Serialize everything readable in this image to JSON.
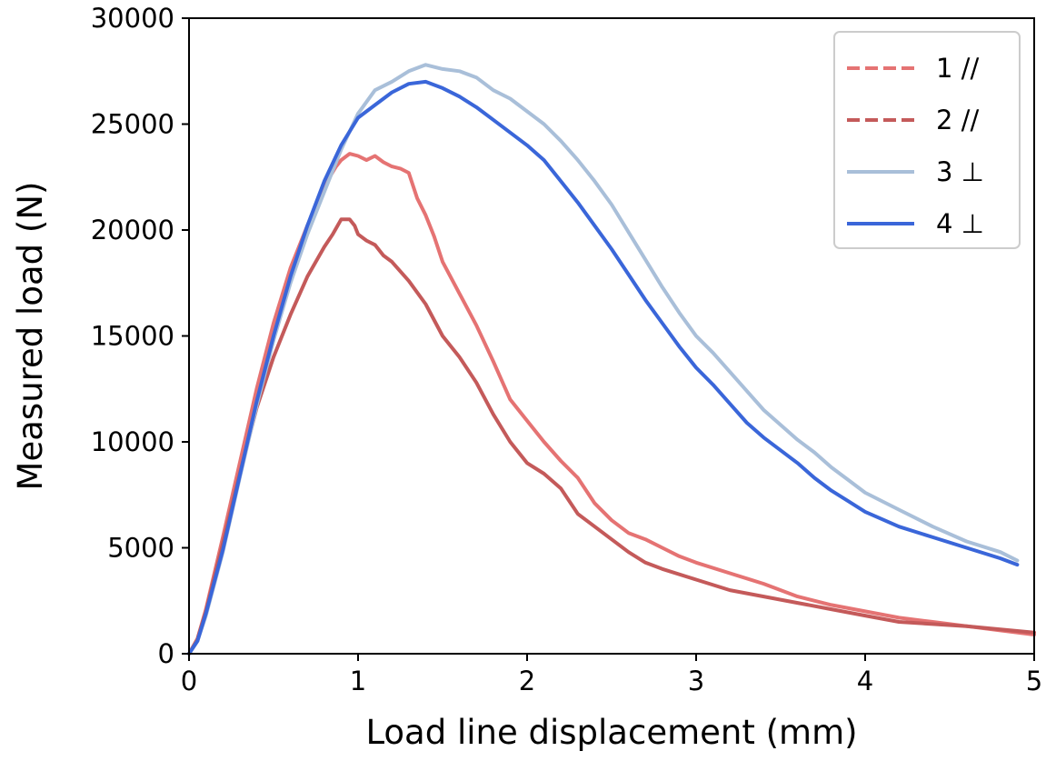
{
  "chart_data": {
    "type": "line",
    "title": "",
    "xlabel": "Load line displacement (mm)",
    "ylabel": "Measured load (N)",
    "xlim": [
      0,
      5
    ],
    "ylim": [
      0,
      30000
    ],
    "xticks": [
      0,
      1,
      2,
      3,
      4,
      5
    ],
    "xtick_labels": [
      "0",
      "1",
      "2",
      "3",
      "4",
      "5"
    ],
    "yticks": [
      0,
      5000,
      10000,
      15000,
      20000,
      25000,
      30000
    ],
    "ytick_labels": [
      "0",
      "5000",
      "10000",
      "15000",
      "20000",
      "25000",
      "30000"
    ],
    "grid": false,
    "legend_position": "top-right",
    "series": [
      {
        "name": "1 //",
        "color": "#e57373",
        "dash": "dashed",
        "points": [
          [
            0,
            0
          ],
          [
            0.05,
            700
          ],
          [
            0.1,
            2100
          ],
          [
            0.2,
            5500
          ],
          [
            0.3,
            9000
          ],
          [
            0.4,
            12500
          ],
          [
            0.5,
            15600
          ],
          [
            0.6,
            18200
          ],
          [
            0.7,
            20200
          ],
          [
            0.8,
            22000
          ],
          [
            0.84,
            22600
          ],
          [
            0.87,
            23000
          ],
          [
            0.9,
            23300
          ],
          [
            0.95,
            23600
          ],
          [
            1.0,
            23500
          ],
          [
            1.05,
            23300
          ],
          [
            1.1,
            23500
          ],
          [
            1.15,
            23200
          ],
          [
            1.2,
            23000
          ],
          [
            1.25,
            22900
          ],
          [
            1.3,
            22700
          ],
          [
            1.35,
            21500
          ],
          [
            1.4,
            20700
          ],
          [
            1.45,
            19700
          ],
          [
            1.5,
            18500
          ],
          [
            1.6,
            17000
          ],
          [
            1.7,
            15500
          ],
          [
            1.8,
            13800
          ],
          [
            1.9,
            12000
          ],
          [
            2.0,
            11000
          ],
          [
            2.1,
            10000
          ],
          [
            2.2,
            9100
          ],
          [
            2.3,
            8300
          ],
          [
            2.4,
            7100
          ],
          [
            2.5,
            6300
          ],
          [
            2.6,
            5700
          ],
          [
            2.7,
            5400
          ],
          [
            2.8,
            5000
          ],
          [
            2.9,
            4600
          ],
          [
            3.0,
            4300
          ],
          [
            3.2,
            3800
          ],
          [
            3.4,
            3300
          ],
          [
            3.6,
            2700
          ],
          [
            3.8,
            2300
          ],
          [
            4.0,
            2000
          ],
          [
            4.2,
            1700
          ],
          [
            4.4,
            1500
          ],
          [
            4.6,
            1300
          ],
          [
            4.8,
            1100
          ],
          [
            5.0,
            900
          ]
        ]
      },
      {
        "name": "2 //",
        "color": "#c45a5a",
        "dash": "dashed",
        "points": [
          [
            0,
            0
          ],
          [
            0.05,
            700
          ],
          [
            0.1,
            2000
          ],
          [
            0.2,
            5200
          ],
          [
            0.3,
            8500
          ],
          [
            0.4,
            11600
          ],
          [
            0.5,
            14000
          ],
          [
            0.6,
            16000
          ],
          [
            0.7,
            17800
          ],
          [
            0.8,
            19200
          ],
          [
            0.85,
            19800
          ],
          [
            0.9,
            20500
          ],
          [
            0.95,
            20500
          ],
          [
            0.98,
            20200
          ],
          [
            1.0,
            19800
          ],
          [
            1.05,
            19500
          ],
          [
            1.1,
            19300
          ],
          [
            1.15,
            18800
          ],
          [
            1.2,
            18500
          ],
          [
            1.3,
            17600
          ],
          [
            1.4,
            16500
          ],
          [
            1.5,
            15000
          ],
          [
            1.6,
            14000
          ],
          [
            1.7,
            12800
          ],
          [
            1.8,
            11300
          ],
          [
            1.9,
            10000
          ],
          [
            2.0,
            9000
          ],
          [
            2.1,
            8500
          ],
          [
            2.2,
            7800
          ],
          [
            2.3,
            6600
          ],
          [
            2.4,
            6000
          ],
          [
            2.5,
            5400
          ],
          [
            2.6,
            4800
          ],
          [
            2.7,
            4300
          ],
          [
            2.8,
            4000
          ],
          [
            3.0,
            3500
          ],
          [
            3.2,
            3000
          ],
          [
            3.4,
            2700
          ],
          [
            3.6,
            2400
          ],
          [
            3.8,
            2100
          ],
          [
            4.0,
            1800
          ],
          [
            4.2,
            1500
          ],
          [
            4.4,
            1400
          ],
          [
            4.6,
            1300
          ],
          [
            4.8,
            1150
          ],
          [
            5.0,
            1000
          ]
        ]
      },
      {
        "name": "3 ⊥",
        "color": "#a9bfd9",
        "dash": "solid",
        "points": [
          [
            0,
            0
          ],
          [
            0.05,
            600
          ],
          [
            0.1,
            1800
          ],
          [
            0.2,
            4800
          ],
          [
            0.3,
            8300
          ],
          [
            0.4,
            11700
          ],
          [
            0.5,
            14800
          ],
          [
            0.6,
            17500
          ],
          [
            0.7,
            19800
          ],
          [
            0.8,
            21800
          ],
          [
            0.9,
            23800
          ],
          [
            1.0,
            25500
          ],
          [
            1.1,
            26600
          ],
          [
            1.2,
            27000
          ],
          [
            1.3,
            27500
          ],
          [
            1.4,
            27800
          ],
          [
            1.5,
            27600
          ],
          [
            1.6,
            27500
          ],
          [
            1.7,
            27200
          ],
          [
            1.8,
            26600
          ],
          [
            1.9,
            26200
          ],
          [
            2.0,
            25600
          ],
          [
            2.1,
            25000
          ],
          [
            2.2,
            24200
          ],
          [
            2.3,
            23300
          ],
          [
            2.4,
            22300
          ],
          [
            2.5,
            21200
          ],
          [
            2.6,
            19900
          ],
          [
            2.7,
            18600
          ],
          [
            2.8,
            17300
          ],
          [
            2.9,
            16100
          ],
          [
            3.0,
            15000
          ],
          [
            3.1,
            14200
          ],
          [
            3.2,
            13300
          ],
          [
            3.3,
            12400
          ],
          [
            3.4,
            11500
          ],
          [
            3.5,
            10800
          ],
          [
            3.6,
            10100
          ],
          [
            3.7,
            9500
          ],
          [
            3.8,
            8800
          ],
          [
            3.9,
            8200
          ],
          [
            4.0,
            7600
          ],
          [
            4.2,
            6800
          ],
          [
            4.4,
            6000
          ],
          [
            4.6,
            5300
          ],
          [
            4.8,
            4800
          ],
          [
            4.9,
            4400
          ]
        ]
      },
      {
        "name": "4 ⊥",
        "color": "#3a66d9",
        "dash": "solid",
        "points": [
          [
            0,
            0
          ],
          [
            0.05,
            600
          ],
          [
            0.1,
            1900
          ],
          [
            0.2,
            4900
          ],
          [
            0.3,
            8400
          ],
          [
            0.4,
            11900
          ],
          [
            0.5,
            15000
          ],
          [
            0.6,
            17800
          ],
          [
            0.7,
            20200
          ],
          [
            0.8,
            22300
          ],
          [
            0.9,
            24000
          ],
          [
            1.0,
            25300
          ],
          [
            1.1,
            25900
          ],
          [
            1.2,
            26500
          ],
          [
            1.3,
            26900
          ],
          [
            1.4,
            27000
          ],
          [
            1.5,
            26700
          ],
          [
            1.6,
            26300
          ],
          [
            1.7,
            25800
          ],
          [
            1.8,
            25200
          ],
          [
            1.9,
            24600
          ],
          [
            2.0,
            24000
          ],
          [
            2.1,
            23300
          ],
          [
            2.2,
            22300
          ],
          [
            2.3,
            21300
          ],
          [
            2.4,
            20200
          ],
          [
            2.5,
            19100
          ],
          [
            2.6,
            17900
          ],
          [
            2.7,
            16700
          ],
          [
            2.8,
            15600
          ],
          [
            2.9,
            14500
          ],
          [
            3.0,
            13500
          ],
          [
            3.1,
            12700
          ],
          [
            3.2,
            11800
          ],
          [
            3.3,
            10900
          ],
          [
            3.4,
            10200
          ],
          [
            3.5,
            9600
          ],
          [
            3.6,
            9000
          ],
          [
            3.7,
            8300
          ],
          [
            3.8,
            7700
          ],
          [
            3.9,
            7200
          ],
          [
            4.0,
            6700
          ],
          [
            4.2,
            6000
          ],
          [
            4.4,
            5500
          ],
          [
            4.6,
            5000
          ],
          [
            4.8,
            4500
          ],
          [
            4.9,
            4200
          ]
        ]
      }
    ]
  }
}
